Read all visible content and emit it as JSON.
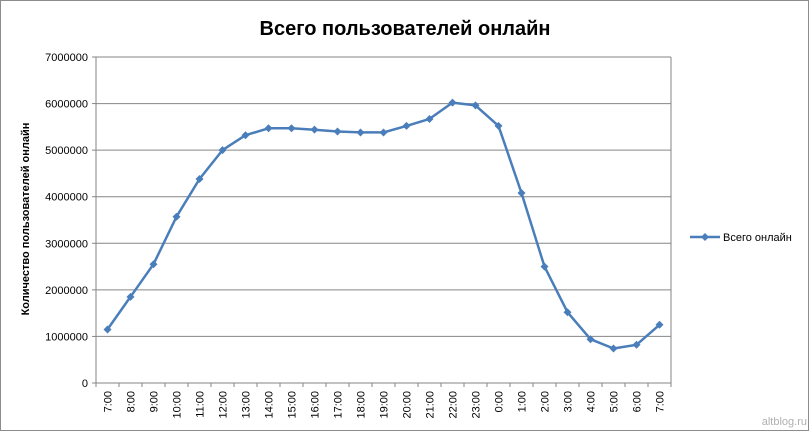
{
  "colors": {
    "series": "#4a7ebb",
    "grid": "#868686",
    "axis": "#868686"
  },
  "watermark": "altblog.ru",
  "chart_data": {
    "type": "line",
    "title": "Всего пользователей онлайн",
    "xlabel": "",
    "ylabel": "Количество  пользователей  онлайн",
    "ylim": [
      0,
      7000000
    ],
    "yticks": [
      0,
      1000000,
      2000000,
      3000000,
      4000000,
      5000000,
      6000000,
      7000000
    ],
    "ytick_labels": [
      "0",
      "1000000",
      "2000000",
      "3000000",
      "4000000",
      "5000000",
      "6000000",
      "7000000"
    ],
    "grid": true,
    "legend_position": "right",
    "categories": [
      "7:00",
      "8:00",
      "9:00",
      "10:00",
      "11:00",
      "12:00",
      "13:00",
      "14:00",
      "15:00",
      "16:00",
      "17:00",
      "18:00",
      "19:00",
      "20:00",
      "21:00",
      "22:00",
      "23:00",
      "0:00",
      "1:00",
      "2:00",
      "3:00",
      "4:00",
      "5:00",
      "6:00",
      "7:00"
    ],
    "series": [
      {
        "name": "Всего онлайн",
        "marker": "diamond",
        "values": [
          1150000,
          1850000,
          2550000,
          3570000,
          4380000,
          5000000,
          5320000,
          5470000,
          5470000,
          5440000,
          5400000,
          5380000,
          5380000,
          5520000,
          5670000,
          6020000,
          5960000,
          5520000,
          4080000,
          2500000,
          1520000,
          940000,
          740000,
          820000,
          1250000
        ]
      }
    ]
  }
}
